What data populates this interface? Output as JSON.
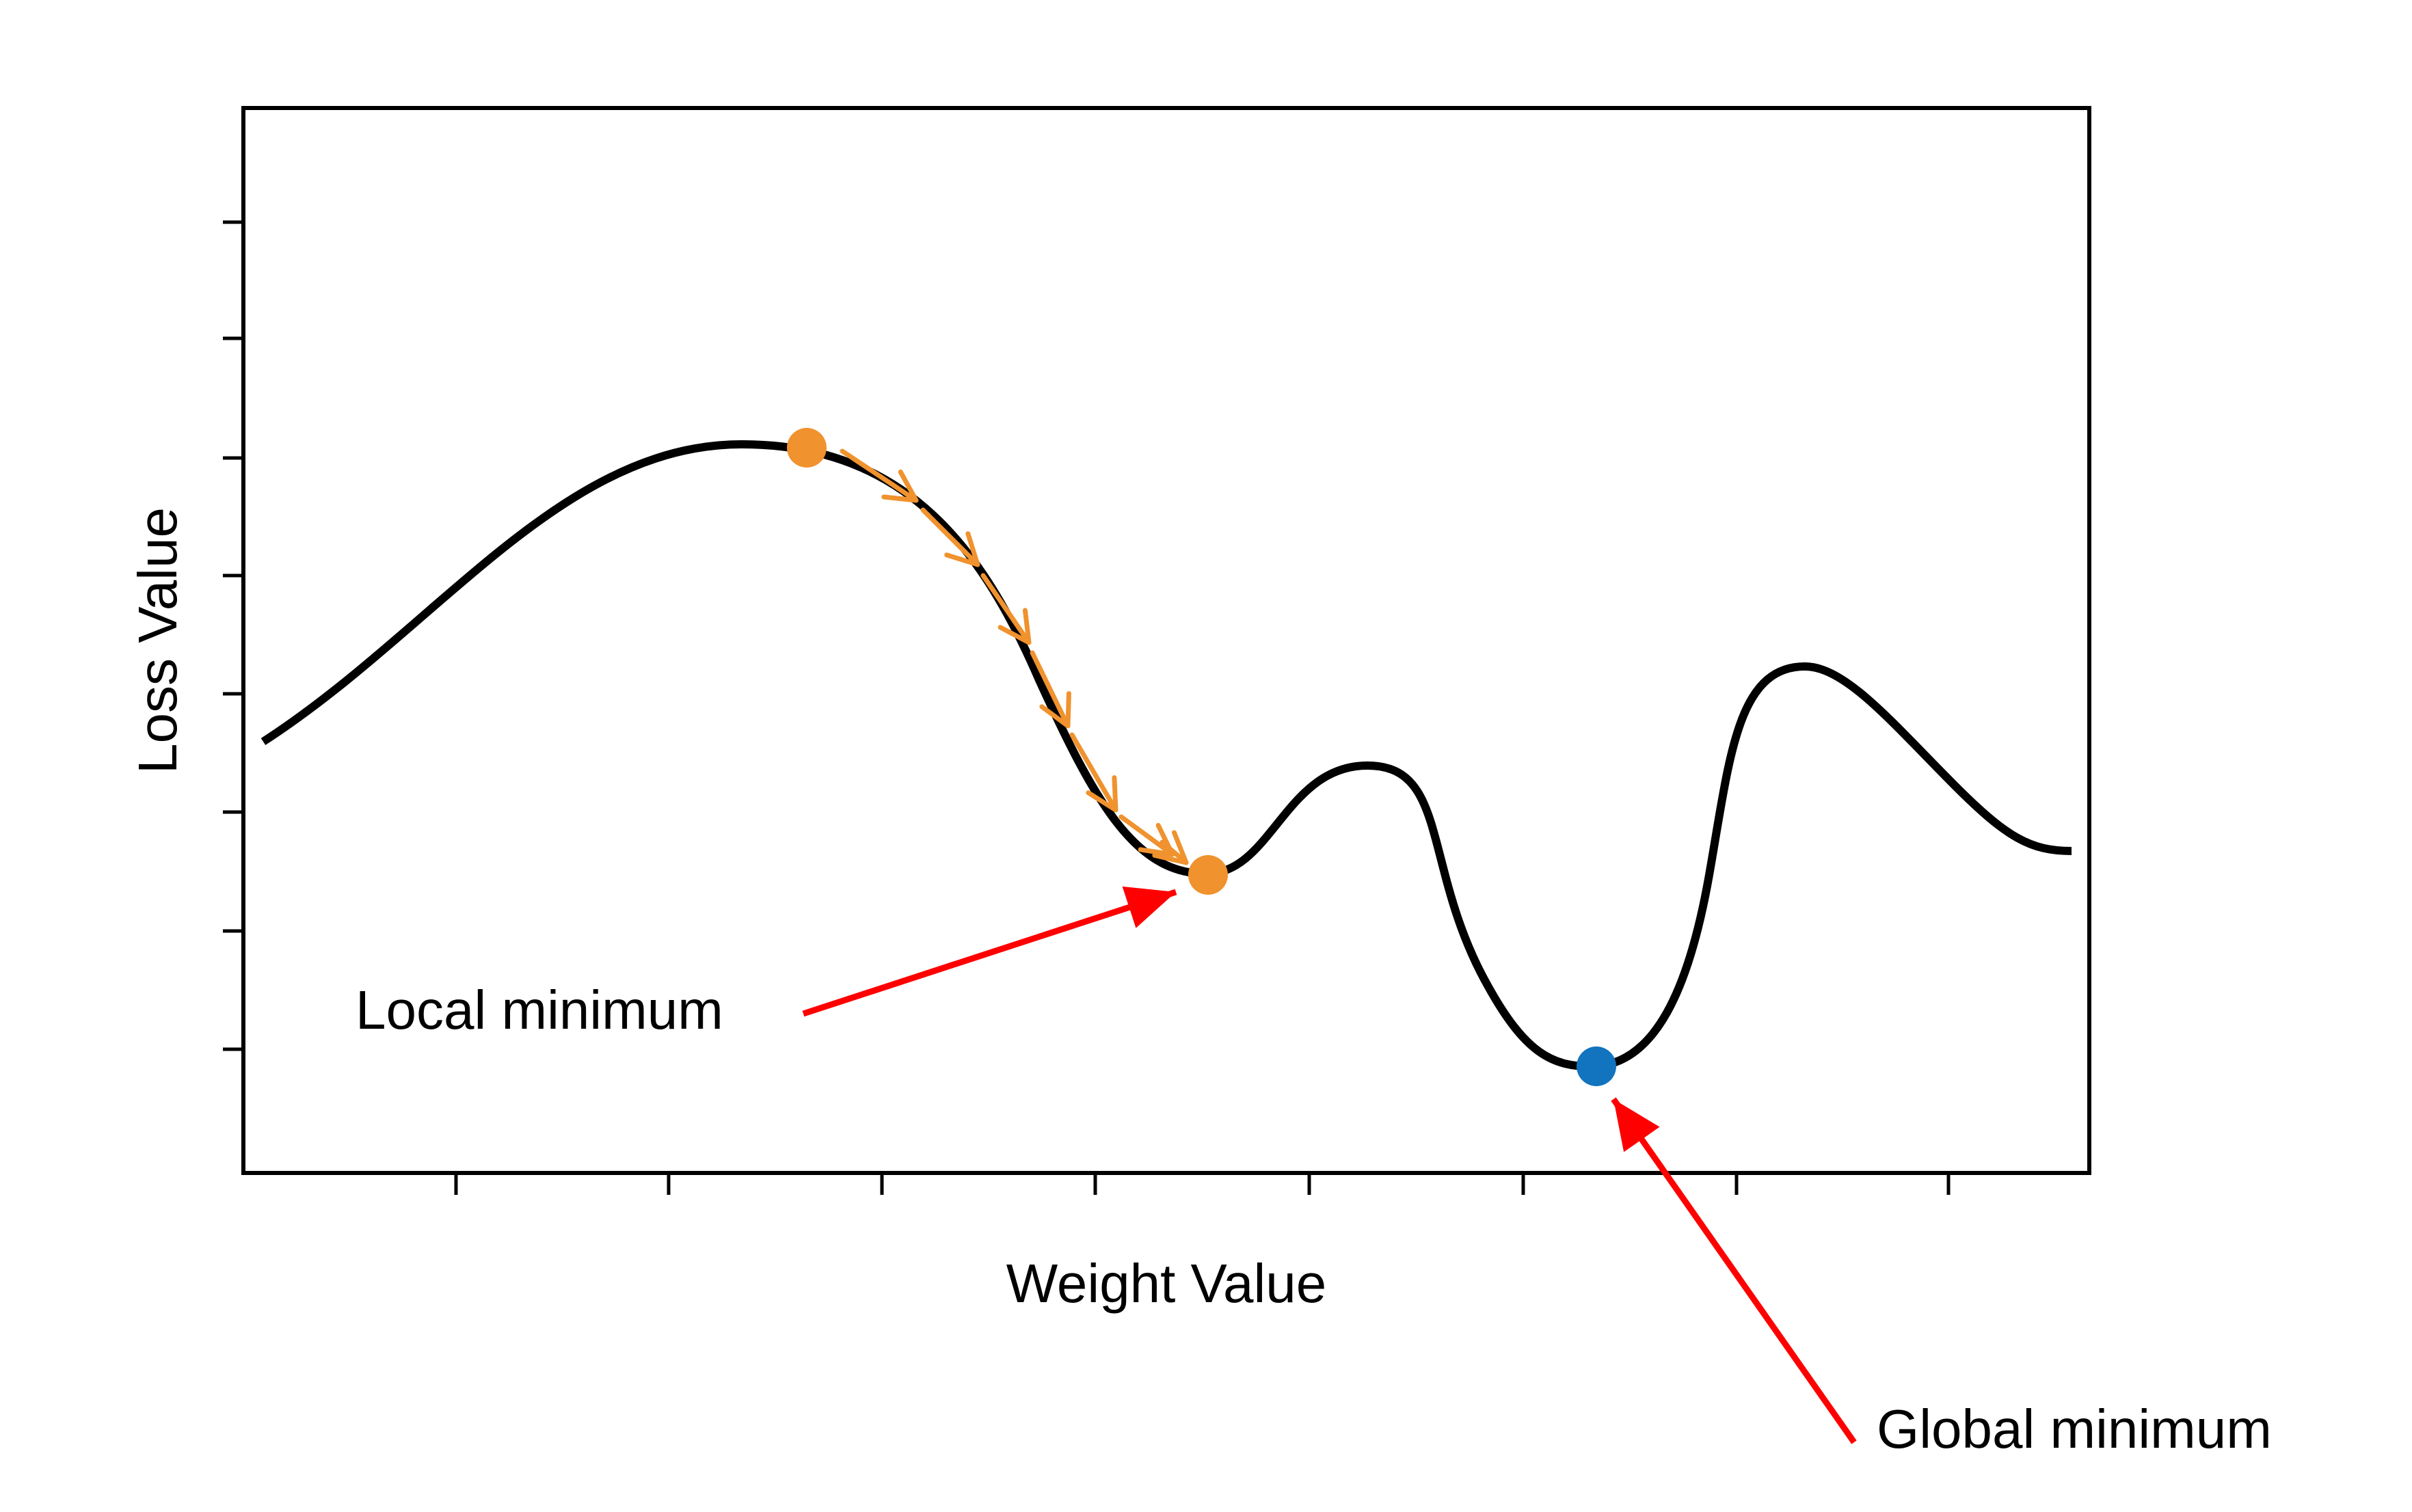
{
  "diagram": {
    "xlabel": "Weight Value",
    "ylabel": "Loss Value",
    "annotations": {
      "local_minimum": "Local minimum",
      "global_minimum": "Global minimum"
    },
    "colors": {
      "curve": "#000000",
      "descent_path": "#F0922E",
      "local_min_marker": "#F0922E",
      "global_min_marker": "#1273BE",
      "annotation_arrow": "#FF0000"
    },
    "x_tick_count": 7,
    "y_tick_count": 8,
    "descent_steps": 7
  }
}
